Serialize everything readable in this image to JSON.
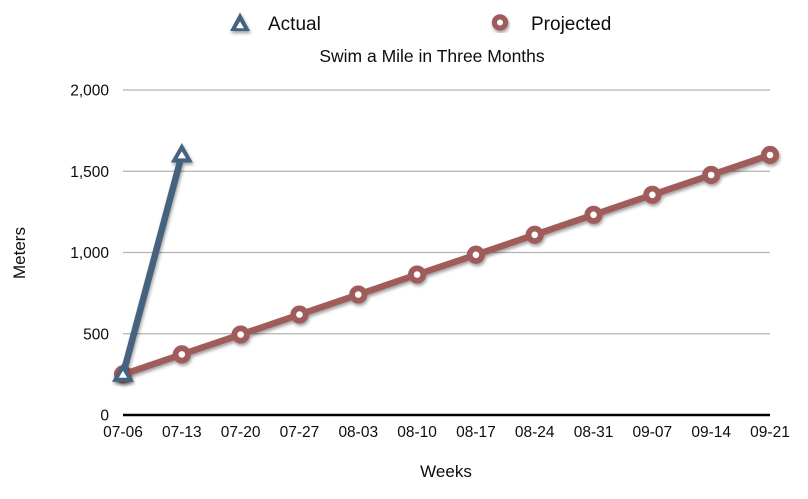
{
  "chart_data": {
    "type": "line",
    "title": "Swim a Mile in Three Months",
    "xlabel": "Weeks",
    "ylabel": "Meters",
    "categories": [
      "07-06",
      "07-13",
      "07-20",
      "07-27",
      "08-03",
      "08-10",
      "08-17",
      "08-24",
      "08-31",
      "09-07",
      "09-14",
      "09-21"
    ],
    "series": [
      {
        "name": "Actual",
        "marker": "triangle",
        "color": "#45627f",
        "values": [
          250,
          1600,
          null,
          null,
          null,
          null,
          null,
          null,
          null,
          null,
          null,
          null
        ]
      },
      {
        "name": "Projected",
        "marker": "circle",
        "color": "#9f5c5a",
        "values": [
          250,
          373,
          495,
          618,
          741,
          864,
          986,
          1109,
          1232,
          1355,
          1477,
          1600
        ]
      }
    ],
    "ylim": [
      0,
      2000
    ],
    "yticks": [
      0,
      500,
      1000,
      1500,
      2000
    ],
    "ytick_labels": [
      "0",
      "500",
      "1,000",
      "1,500",
      "2,000"
    ],
    "grid": true,
    "legend_position": "top",
    "colors": {
      "gridline": "#b3b3b3",
      "axis_line": "#000000",
      "text": "#0d0d0d",
      "marker_hole": "#ffffff"
    }
  }
}
